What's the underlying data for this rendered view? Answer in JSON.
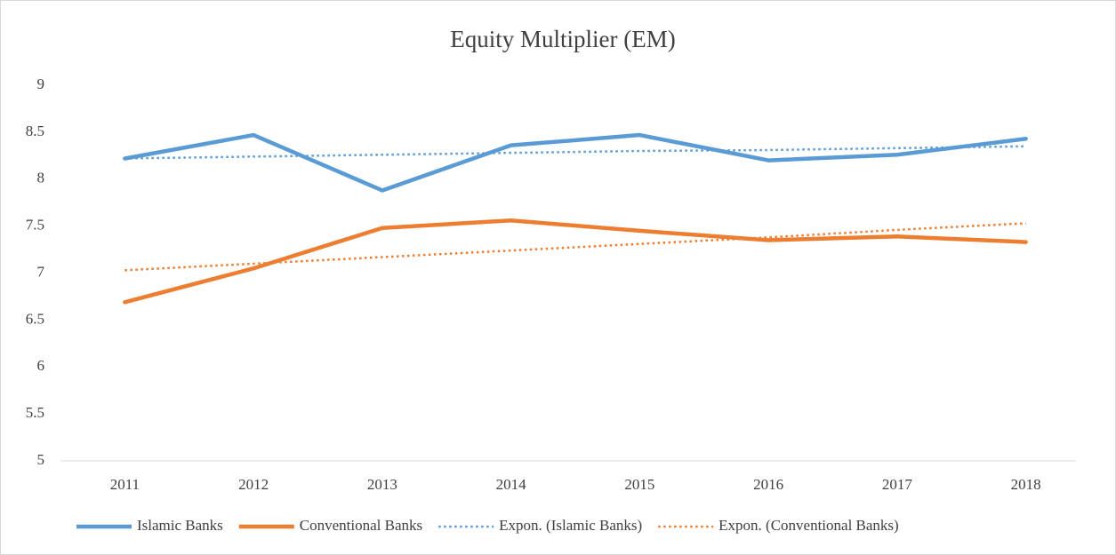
{
  "chart_data": {
    "type": "line",
    "title": "Equity Multiplier (EM)",
    "categories": [
      "2011",
      "2012",
      "2013",
      "2014",
      "2015",
      "2016",
      "2017",
      "2018"
    ],
    "series": [
      {
        "name": "Islamic Banks",
        "color": "#5b9bd5",
        "style": "solid",
        "values": [
          8.22,
          8.47,
          7.88,
          8.36,
          8.47,
          8.2,
          8.26,
          8.43
        ]
      },
      {
        "name": "Conventional Banks",
        "color": "#ed7d31",
        "style": "solid",
        "values": [
          6.69,
          7.05,
          7.48,
          7.56,
          7.45,
          7.35,
          7.39,
          7.33
        ]
      },
      {
        "name": "Expon. (Islamic Banks)",
        "color": "#5b9bd5",
        "style": "dotted",
        "values": [
          8.22,
          8.24,
          8.26,
          8.28,
          8.3,
          8.31,
          8.33,
          8.35
        ]
      },
      {
        "name": "Expon. (Conventional Banks)",
        "color": "#ed7d31",
        "style": "dotted",
        "values": [
          7.03,
          7.1,
          7.17,
          7.24,
          7.31,
          7.38,
          7.46,
          7.53
        ]
      }
    ],
    "ylim": [
      5,
      9
    ],
    "yticks": [
      5,
      5.5,
      6,
      6.5,
      7,
      7.5,
      8,
      8.5,
      9
    ],
    "grid": false,
    "legend": "bottom"
  }
}
